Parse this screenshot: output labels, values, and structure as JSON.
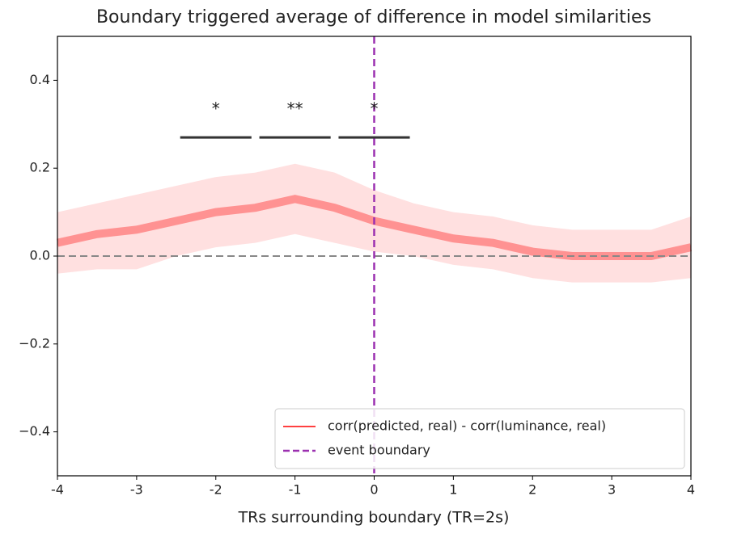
{
  "chart_data": {
    "type": "line",
    "title": "Boundary triggered average of difference in model similarities",
    "x_label": "TRs surrounding boundary (TR=2s)",
    "x": [
      -4,
      -3.5,
      -3,
      -2.5,
      -2,
      -1.5,
      -1,
      -0.5,
      0,
      0.5,
      1,
      1.5,
      2,
      2.5,
      3,
      3.5,
      4
    ],
    "series": [
      {
        "name": "corr(predicted, real) - corr(luminance, real)",
        "color": "#ff0000",
        "values": [
          0.03,
          0.05,
          0.06,
          0.08,
          0.1,
          0.11,
          0.13,
          0.11,
          0.08,
          0.06,
          0.04,
          0.03,
          0.01,
          0.0,
          0.0,
          0.0,
          0.02
        ],
        "upper": [
          0.1,
          0.12,
          0.14,
          0.16,
          0.18,
          0.19,
          0.21,
          0.19,
          0.15,
          0.12,
          0.1,
          0.09,
          0.07,
          0.06,
          0.06,
          0.06,
          0.09
        ],
        "lower": [
          -0.04,
          -0.03,
          -0.03,
          0.0,
          0.02,
          0.03,
          0.05,
          0.03,
          0.01,
          0.0,
          -0.02,
          -0.03,
          -0.05,
          -0.06,
          -0.06,
          -0.06,
          -0.05
        ]
      }
    ],
    "vlines": [
      {
        "name": "event boundary",
        "x": 0,
        "color": "#9b30b0"
      }
    ],
    "hline": {
      "value": 0,
      "color": "#888888"
    },
    "annotations": [
      {
        "text": "*",
        "x": -2,
        "xmin": -2.45,
        "xmax": -1.55,
        "y": 0.27
      },
      {
        "text": "**",
        "x": -1,
        "xmin": -1.45,
        "xmax": -0.55,
        "y": 0.27
      },
      {
        "text": "*",
        "x": 0,
        "xmin": -0.45,
        "xmax": 0.45,
        "y": 0.27
      }
    ],
    "xlim": [
      -4,
      4
    ],
    "xticks": [
      -4,
      -3,
      -2,
      -1,
      0,
      1,
      2,
      3,
      4
    ],
    "ylim": [
      -0.5,
      0.5
    ],
    "yticks": [
      {
        "value": -0.4,
        "label": "−0.4"
      },
      {
        "value": -0.2,
        "label": "−0.2"
      },
      {
        "value": 0,
        "label": "0.0"
      },
      0.2,
      0.4
    ],
    "grid": false,
    "legend": "lower right"
  }
}
